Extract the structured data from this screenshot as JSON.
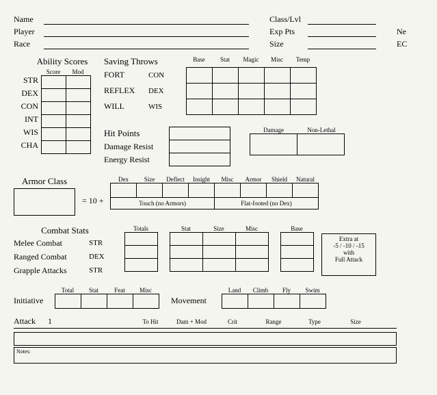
{
  "identity": {
    "left": [
      {
        "label": "Name"
      },
      {
        "label": "Player"
      },
      {
        "label": "Race"
      }
    ],
    "mid": [
      {
        "label": "Class/Lvl"
      },
      {
        "label": "Exp Pts"
      },
      {
        "label": "Size"
      }
    ],
    "right": [
      {
        "label": "Ne"
      },
      {
        "label": "EC"
      }
    ]
  },
  "abilities": {
    "title": "Ability Scores",
    "cols": [
      "Score",
      "Mod"
    ],
    "rows": [
      "STR",
      "DEX",
      "CON",
      "INT",
      "WIS",
      "CHA"
    ]
  },
  "saves": {
    "title": "Saving Throws",
    "cols": [
      "Base",
      "Stat",
      "Magic",
      "Misc",
      "Temp"
    ],
    "rows": [
      {
        "name": "FORT",
        "stat": "CON"
      },
      {
        "name": "REFLEX",
        "stat": "DEX"
      },
      {
        "name": "WILL",
        "stat": "WIS"
      }
    ]
  },
  "hp": {
    "title": "Hit Points",
    "dr": "Damage Resist",
    "er": "Energy Resist",
    "dmg": "Damage",
    "nl": "Non-Lethal"
  },
  "ac": {
    "title": "Armor Class",
    "eq": "=  10  +",
    "cols": [
      "Dex",
      "Size",
      "Deflect",
      "Insight",
      "Misc",
      "Armor",
      "Shield",
      "Natural"
    ],
    "touch": "Touch (no Armors)",
    "flat": "Flat-footed (no Dex)"
  },
  "combat": {
    "title": "Combat Stats",
    "heads": [
      "Totals",
      "",
      "Stat",
      "Size",
      "Misc",
      "",
      "Base"
    ],
    "rows": [
      {
        "name": "Melee Combat",
        "stat": "STR"
      },
      {
        "name": "Ranged Combat",
        "stat": "DEX"
      },
      {
        "name": "Grapple Attacks",
        "stat": "STR"
      }
    ],
    "extra_l1": "Extra at",
    "extra_l2": "-5 / -10 / -15",
    "extra_l3": "with",
    "extra_l4": "Full Attack"
  },
  "init": {
    "title": "Initiative",
    "cols": [
      "Total",
      "Stat",
      "Feat",
      "Misc"
    ]
  },
  "move": {
    "title": "Movement",
    "cols": [
      "Land",
      "Climb",
      "Fly",
      "Swim"
    ]
  },
  "attack": {
    "title": "Attack",
    "num": "1",
    "cols": [
      "To Hit",
      "Dam + Mod",
      "Crit",
      "Range",
      "Type",
      "Size"
    ]
  },
  "notes": "Notes:"
}
